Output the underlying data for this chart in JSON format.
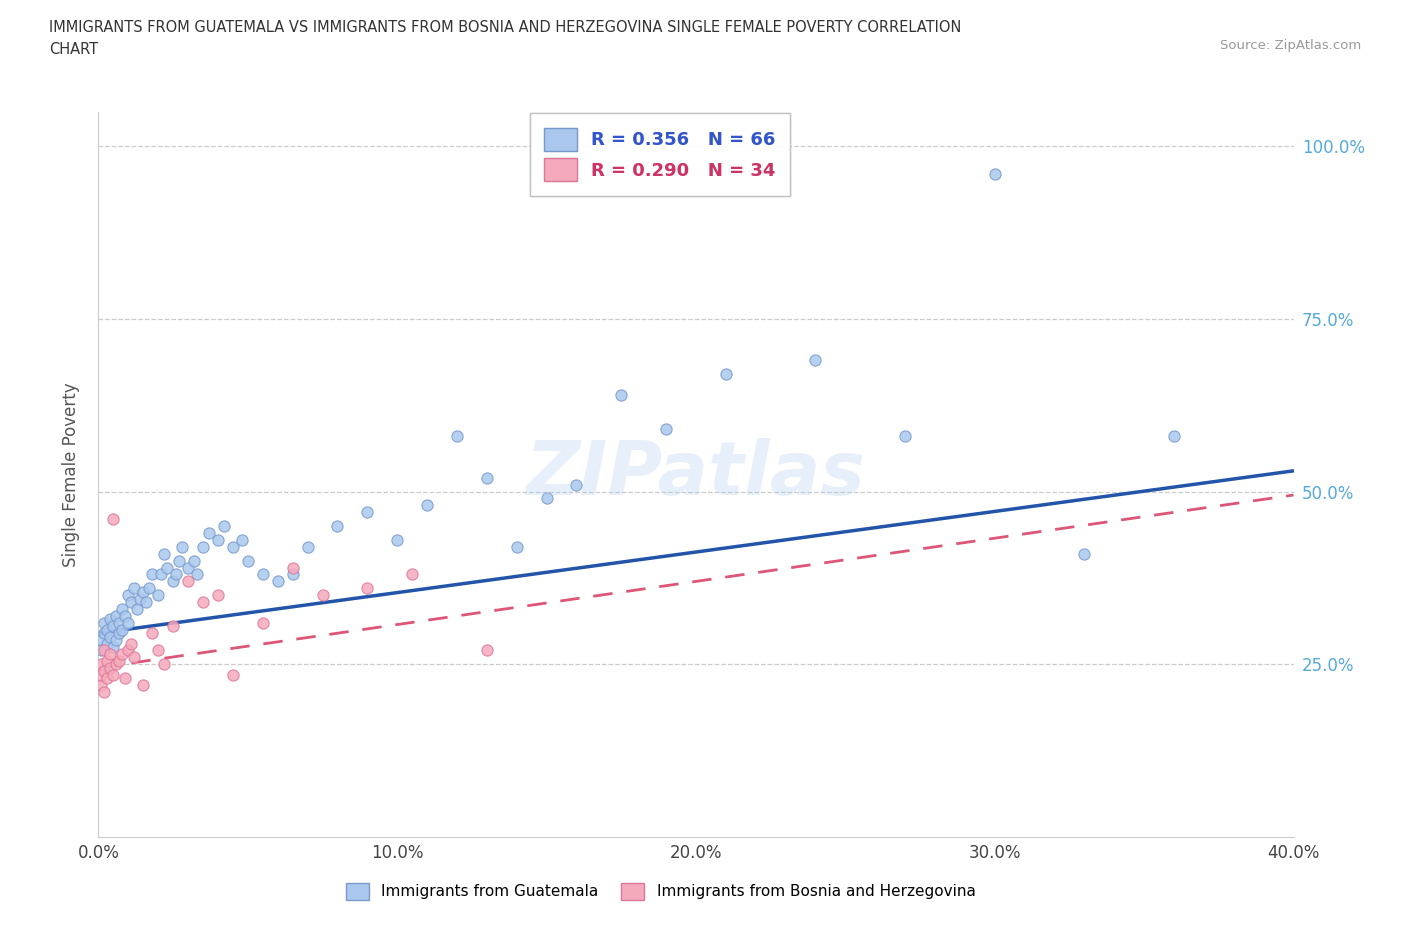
{
  "title_line1": "IMMIGRANTS FROM GUATEMALA VS IMMIGRANTS FROM BOSNIA AND HERZEGOVINA SINGLE FEMALE POVERTY CORRELATION",
  "title_line2": "CHART",
  "source": "Source: ZipAtlas.com",
  "ylabel": "Single Female Poverty",
  "xlim": [
    0.0,
    0.4
  ],
  "ylim": [
    0.0,
    1.05
  ],
  "xtick_labels": [
    "0.0%",
    "10.0%",
    "20.0%",
    "30.0%",
    "40.0%"
  ],
  "xtick_values": [
    0.0,
    0.1,
    0.2,
    0.3,
    0.4
  ],
  "ytick_labels": [
    "25.0%",
    "50.0%",
    "75.0%",
    "100.0%"
  ],
  "ytick_values": [
    0.25,
    0.5,
    0.75,
    1.0
  ],
  "guatemala_color": "#aac8ee",
  "guatemala_edge": "#7799cc",
  "bosnia_color": "#f5aabb",
  "bosnia_edge": "#dd7799",
  "trendline_guatemala_color": "#2255aa",
  "trendline_bosnia_color": "#dd5577",
  "R_guatemala": "0.356",
  "N_guatemala": "66",
  "R_bosnia": "0.290",
  "N_bosnia": "34",
  "watermark": "ZIPatlas",
  "legend_label_guatemala": "Immigrants from Guatemala",
  "legend_label_bosnia": "Immigrants from Bosnia and Herzegovina",
  "guatemala_x": [
    0.001,
    0.001,
    0.002,
    0.002,
    0.003,
    0.003,
    0.004,
    0.004,
    0.005,
    0.005,
    0.006,
    0.006,
    0.007,
    0.007,
    0.008,
    0.008,
    0.009,
    0.01,
    0.01,
    0.011,
    0.012,
    0.013,
    0.014,
    0.015,
    0.016,
    0.017,
    0.018,
    0.02,
    0.021,
    0.022,
    0.023,
    0.025,
    0.026,
    0.027,
    0.028,
    0.03,
    0.032,
    0.033,
    0.035,
    0.037,
    0.04,
    0.042,
    0.045,
    0.048,
    0.05,
    0.055,
    0.06,
    0.065,
    0.07,
    0.08,
    0.09,
    0.1,
    0.11,
    0.12,
    0.13,
    0.14,
    0.15,
    0.16,
    0.175,
    0.19,
    0.21,
    0.24,
    0.27,
    0.3,
    0.33,
    0.36
  ],
  "guatemala_y": [
    0.285,
    0.27,
    0.295,
    0.31,
    0.28,
    0.3,
    0.315,
    0.29,
    0.275,
    0.305,
    0.32,
    0.285,
    0.295,
    0.31,
    0.3,
    0.33,
    0.32,
    0.35,
    0.31,
    0.34,
    0.36,
    0.33,
    0.345,
    0.355,
    0.34,
    0.36,
    0.38,
    0.35,
    0.38,
    0.41,
    0.39,
    0.37,
    0.38,
    0.4,
    0.42,
    0.39,
    0.4,
    0.38,
    0.42,
    0.44,
    0.43,
    0.45,
    0.42,
    0.43,
    0.4,
    0.38,
    0.37,
    0.38,
    0.42,
    0.45,
    0.47,
    0.43,
    0.48,
    0.58,
    0.52,
    0.42,
    0.49,
    0.51,
    0.64,
    0.59,
    0.67,
    0.69,
    0.58,
    0.96,
    0.41,
    0.58
  ],
  "bosnia_x": [
    0.001,
    0.001,
    0.001,
    0.002,
    0.002,
    0.002,
    0.003,
    0.003,
    0.004,
    0.004,
    0.005,
    0.005,
    0.006,
    0.007,
    0.008,
    0.009,
    0.01,
    0.011,
    0.012,
    0.015,
    0.018,
    0.02,
    0.022,
    0.025,
    0.03,
    0.035,
    0.04,
    0.045,
    0.055,
    0.065,
    0.075,
    0.09,
    0.105,
    0.13
  ],
  "bosnia_y": [
    0.22,
    0.25,
    0.235,
    0.24,
    0.27,
    0.21,
    0.255,
    0.23,
    0.265,
    0.245,
    0.46,
    0.235,
    0.25,
    0.255,
    0.265,
    0.23,
    0.27,
    0.28,
    0.26,
    0.22,
    0.295,
    0.27,
    0.25,
    0.305,
    0.37,
    0.34,
    0.35,
    0.235,
    0.31,
    0.39,
    0.35,
    0.36,
    0.38,
    0.27
  ],
  "trendline_g_x0": 0.0,
  "trendline_g_y0": 0.295,
  "trendline_g_x1": 0.4,
  "trendline_g_y1": 0.53,
  "trendline_b_x0": 0.0,
  "trendline_b_y0": 0.245,
  "trendline_b_x1": 0.4,
  "trendline_b_y1": 0.495
}
